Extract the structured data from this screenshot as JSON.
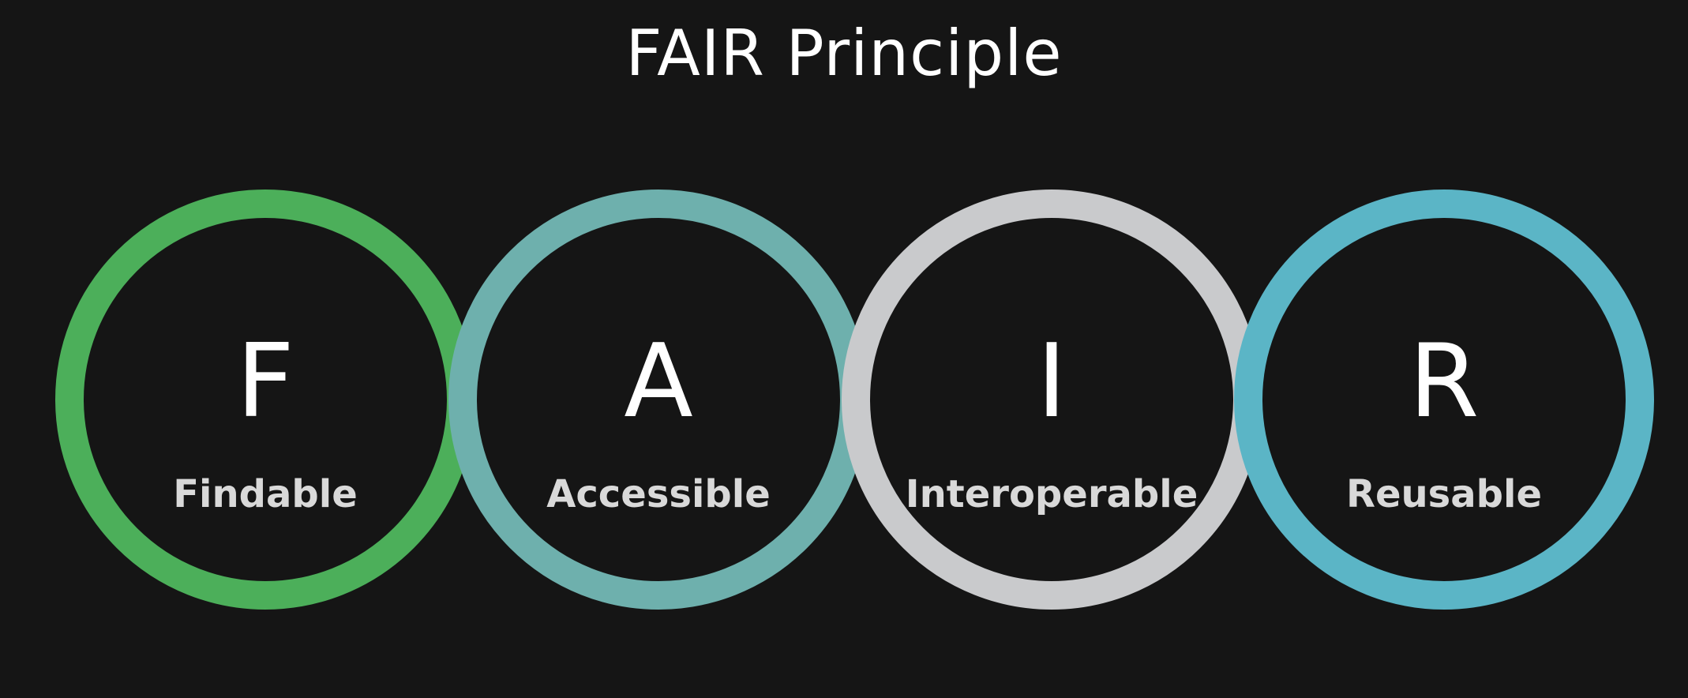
{
  "title": "FAIR Principle",
  "principles": [
    {
      "letter": "F",
      "word": "Findable",
      "color": "#4caf5a"
    },
    {
      "letter": "A",
      "word": "Accessible",
      "color": "#6eb0ad"
    },
    {
      "letter": "I",
      "word": "Interoperable",
      "color": "#c9cacc"
    },
    {
      "letter": "R",
      "word": "Reusable",
      "color": "#5bb5c6"
    }
  ]
}
